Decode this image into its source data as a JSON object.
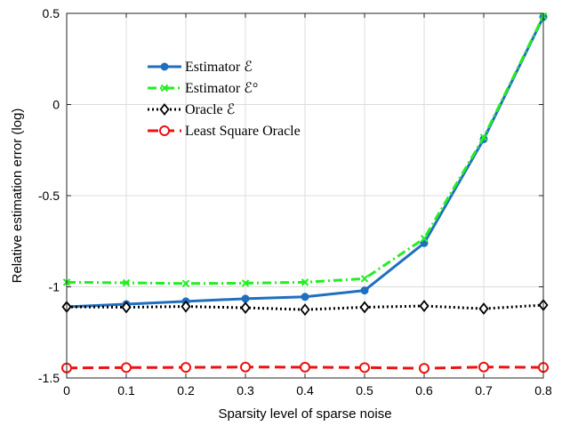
{
  "chart_data": {
    "type": "line",
    "title": "",
    "xlabel": "Sparsity level of sparse noise",
    "ylabel": "Relative estimation error (log)",
    "x": [
      0,
      0.1,
      0.2,
      0.3,
      0.4,
      0.5,
      0.6,
      0.7,
      0.8
    ],
    "xlim": [
      0,
      0.8
    ],
    "ylim": [
      -1.5,
      0.5
    ],
    "x_ticks": [
      "0",
      "0.1",
      "0.2",
      "0.3",
      "0.4",
      "0.5",
      "0.6",
      "0.7",
      "0.8"
    ],
    "y_ticks": [
      "-1.5",
      "-1",
      "-0.5",
      "0",
      "0.5"
    ],
    "grid": true,
    "legend_position": "top-left",
    "series": [
      {
        "name": "Estimator ℰ",
        "color": "#1f6fbf",
        "marker": "dot",
        "dash": "solid",
        "values": [
          -1.11,
          -1.095,
          -1.08,
          -1.065,
          -1.055,
          -1.02,
          -0.76,
          -0.19,
          0.48
        ]
      },
      {
        "name": "Estimator ℰ°",
        "color": "#22ee22",
        "marker": "x",
        "dash": "dashdot",
        "values": [
          -0.975,
          -0.978,
          -0.982,
          -0.98,
          -0.975,
          -0.955,
          -0.735,
          -0.18,
          0.485
        ]
      },
      {
        "name": "Oracle ℰ",
        "color": "#000000",
        "marker": "diamond",
        "dash": "dotted",
        "values": [
          -1.11,
          -1.112,
          -1.108,
          -1.115,
          -1.125,
          -1.112,
          -1.105,
          -1.12,
          -1.1
        ]
      },
      {
        "name": "Least Square Oracle",
        "color": "#ee1111",
        "marker": "circle",
        "dash": "dashed",
        "values": [
          -1.445,
          -1.443,
          -1.442,
          -1.44,
          -1.441,
          -1.443,
          -1.447,
          -1.44,
          -1.442
        ]
      }
    ]
  }
}
